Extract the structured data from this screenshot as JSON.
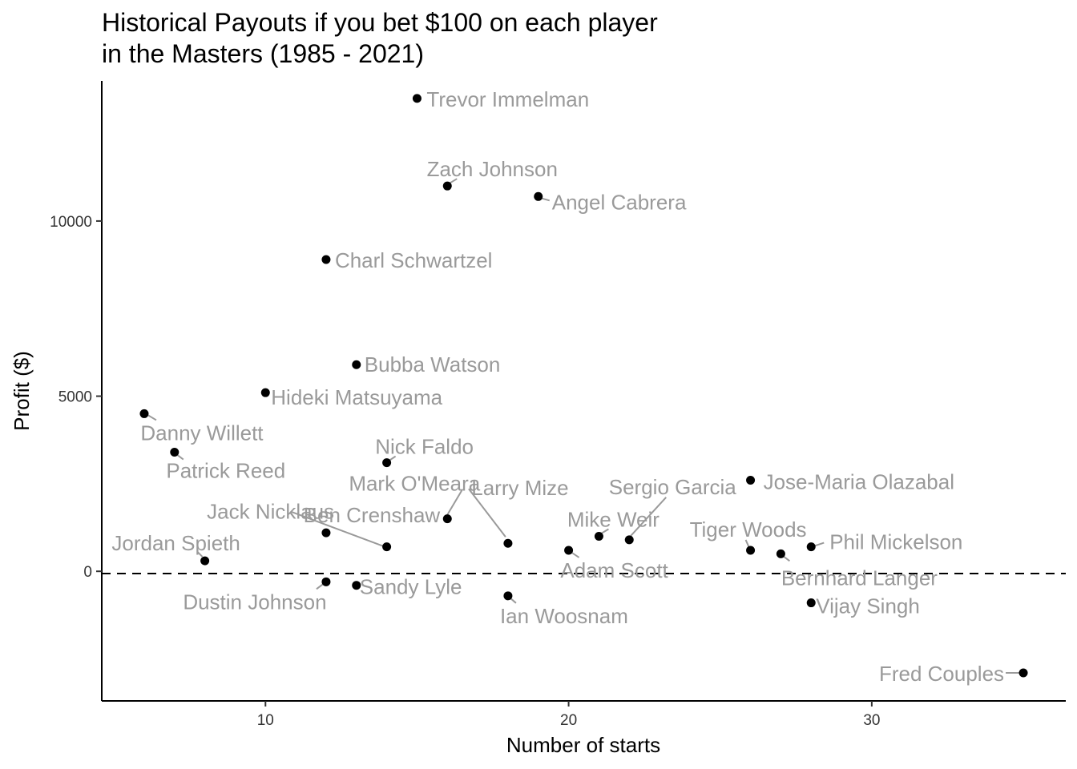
{
  "chart_data": {
    "type": "scatter",
    "title_lines": [
      "Historical Payouts if you bet $100 on each player",
      "in the Masters (1985 - 2021)"
    ],
    "xlabel": "Number of starts",
    "ylabel": "Profit ($)",
    "xlim": [
      4.6,
      36.4
    ],
    "ylim": [
      -3700,
      14000
    ],
    "xticks": [
      10,
      20,
      30
    ],
    "yticks": [
      0,
      5000,
      10000
    ],
    "reference_line": {
      "y": 0,
      "style": "dashed"
    },
    "grid": false,
    "colors": {
      "point": "#000000",
      "label": "#9a9a9a",
      "leader": "#9a9a9a"
    },
    "points": [
      {
        "name": "Trevor Immelman",
        "x": 15,
        "y": 13500
      },
      {
        "name": "Zach Johnson",
        "x": 16,
        "y": 11000
      },
      {
        "name": "Angel Cabrera",
        "x": 19,
        "y": 10700
      },
      {
        "name": "Charl Schwartzel",
        "x": 12,
        "y": 8900
      },
      {
        "name": "Bubba Watson",
        "x": 13,
        "y": 5900
      },
      {
        "name": "Hideki Matsuyama",
        "x": 10,
        "y": 5100
      },
      {
        "name": "Danny Willett",
        "x": 6,
        "y": 4500
      },
      {
        "name": "Patrick Reed",
        "x": 7,
        "y": 3400
      },
      {
        "name": "Nick Faldo",
        "x": 14,
        "y": 3100
      },
      {
        "name": "Jose-Maria Olazabal",
        "x": 26,
        "y": 2600
      },
      {
        "name": "Larry Mize",
        "x": 18,
        "y": 800
      },
      {
        "name": "Mark O'Meara",
        "x": 16,
        "y": 1500
      },
      {
        "name": "Sergio Garcia",
        "x": 22,
        "y": 900
      },
      {
        "name": "Jack Nicklaus",
        "x": 14,
        "y": 700
      },
      {
        "name": "Ben Crenshaw",
        "x": 12,
        "y": 1100
      },
      {
        "name": "Mike Weir",
        "x": 21,
        "y": 1000
      },
      {
        "name": "Jordan Spieth",
        "x": 8,
        "y": 300
      },
      {
        "name": "Tiger Woods",
        "x": 26,
        "y": 600
      },
      {
        "name": "Phil Mickelson",
        "x": 28,
        "y": 700
      },
      {
        "name": "Adam Scott",
        "x": 20,
        "y": 600
      },
      {
        "name": "Bernhard Langer",
        "x": 27,
        "y": 500
      },
      {
        "name": "Dustin Johnson",
        "x": 12,
        "y": -300
      },
      {
        "name": "Sandy Lyle",
        "x": 13,
        "y": -400
      },
      {
        "name": "Ian Woosnam",
        "x": 18,
        "y": -700
      },
      {
        "name": "Vijay Singh",
        "x": 28,
        "y": -900
      },
      {
        "name": "Fred Couples",
        "x": 35,
        "y": -2900
      }
    ]
  }
}
